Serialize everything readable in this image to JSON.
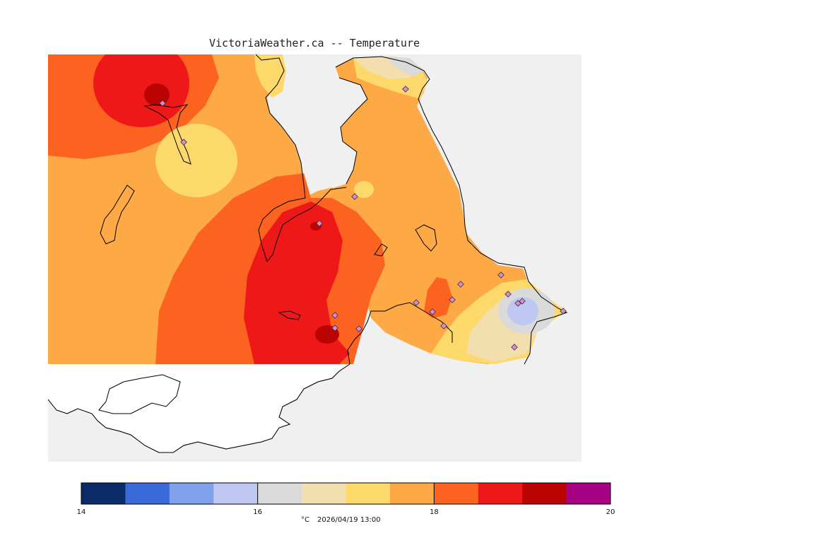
{
  "title": "VictoriaWeather.ca -- Temperature",
  "legend": {
    "colors": [
      "#0b2a68",
      "#3a6ada",
      "#7fa0ec",
      "#bec8f0",
      "#dadada",
      "#f3deae",
      "#fdd96c",
      "#fca946",
      "#fc6320",
      "#ee1818",
      "#ba0404",
      "#a60083"
    ],
    "tick_labels": [
      "14",
      "16",
      "18",
      "20"
    ],
    "unit": "°C",
    "timestamp": "2026/04/19 13:00",
    "min": 14,
    "max": 20
  },
  "map": {
    "background_color": "#f0f0f0",
    "land_color": "#fca946",
    "station_marker_color": "#d98bd2"
  }
}
